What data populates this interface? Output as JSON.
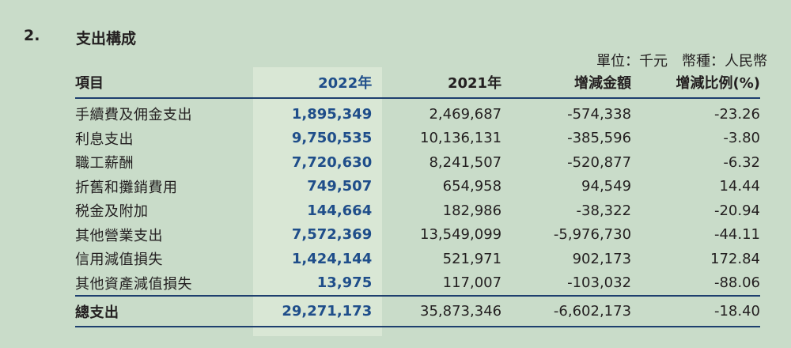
{
  "section": {
    "number": "2.",
    "title": "支出構成"
  },
  "unit_note": "單位：千元　幣種：人民幣",
  "table": {
    "headers": {
      "item": "項目",
      "y2022": "2022年",
      "y2021": "2021年",
      "change": "增減金額",
      "pct": "增減比例(%)"
    },
    "rows": [
      {
        "item": "手續費及佣金支出",
        "y2022": "1,895,349",
        "y2021": "2,469,687",
        "change": "-574,338",
        "pct": "-23.26"
      },
      {
        "item": "利息支出",
        "y2022": "9,750,535",
        "y2021": "10,136,131",
        "change": "-385,596",
        "pct": "-3.80"
      },
      {
        "item": "職工薪酬",
        "y2022": "7,720,630",
        "y2021": "8,241,507",
        "change": "-520,877",
        "pct": "-6.32"
      },
      {
        "item": "折舊和攤銷費用",
        "y2022": "749,507",
        "y2021": "654,958",
        "change": "94,549",
        "pct": "14.44"
      },
      {
        "item": "税金及附加",
        "y2022": "144,664",
        "y2021": "182,986",
        "change": "-38,322",
        "pct": "-20.94"
      },
      {
        "item": "其他營業支出",
        "y2022": "7,572,369",
        "y2021": "13,549,099",
        "change": "-5,976,730",
        "pct": "-44.11"
      },
      {
        "item": "信用減值損失",
        "y2022": "1,424,144",
        "y2021": "521,971",
        "change": "902,173",
        "pct": "172.84"
      },
      {
        "item": "其他資產減值損失",
        "y2022": "13,975",
        "y2021": "117,007",
        "change": "-103,032",
        "pct": "-88.06"
      }
    ],
    "total": {
      "item": "總支出",
      "y2022": "29,271,173",
      "y2021": "35,873,346",
      "change": "-6,602,173",
      "pct": "-18.40"
    }
  }
}
